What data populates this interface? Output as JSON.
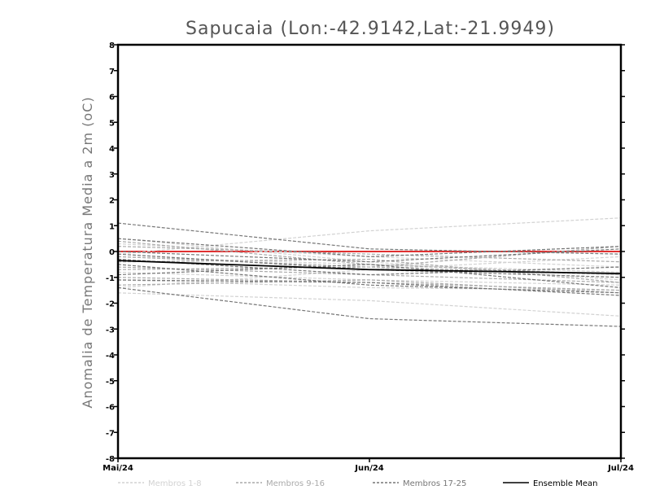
{
  "chart_data": {
    "type": "line",
    "title": "Sapucaia (Lon:-42.9142,Lat:-21.9949)",
    "ylabel": "Anomalia de Temperatura Media a 2m (oC)",
    "xlabel": "",
    "categories": [
      "Mai/24",
      "Jun/24",
      "Jul/24"
    ],
    "ylim": [
      -8,
      8
    ],
    "yticks": [
      "8",
      "7",
      "6",
      "5",
      "4",
      "3",
      "2",
      "1",
      "0",
      "-1",
      "-2",
      "-3",
      "-4",
      "-5",
      "-6",
      "-7",
      "-8"
    ],
    "zero_line_color": "#e03030",
    "legend_position": "bottom",
    "legend": [
      {
        "label": "Membros 1-8",
        "color": "#d2d2d2",
        "dash": true
      },
      {
        "label": "Membros 9-16",
        "color": "#aaaaaa",
        "dash": true
      },
      {
        "label": "Membros 17-25",
        "color": "#777777",
        "dash": true
      },
      {
        "label": "Ensemble Mean",
        "color": "#000000",
        "dash": false
      }
    ],
    "series": [
      {
        "group": 1,
        "values": [
          -1.6,
          -1.9,
          -2.5
        ]
      },
      {
        "group": 1,
        "values": [
          -0.1,
          0.8,
          1.3
        ]
      },
      {
        "group": 1,
        "values": [
          -0.8,
          -1.1,
          -1.3
        ]
      },
      {
        "group": 1,
        "values": [
          0.3,
          -0.2,
          -0.6
        ]
      },
      {
        "group": 1,
        "values": [
          -1.1,
          -1.4,
          -1.5
        ]
      },
      {
        "group": 1,
        "values": [
          -0.2,
          -0.5,
          -0.8
        ]
      },
      {
        "group": 1,
        "values": [
          -1.4,
          -0.7,
          -0.2
        ]
      },
      {
        "group": 1,
        "values": [
          0.5,
          -0.4,
          -1.1
        ]
      },
      {
        "group": 2,
        "values": [
          -1.3,
          -1.1,
          -1.6
        ]
      },
      {
        "group": 2,
        "values": [
          0.4,
          -0.5,
          -0.9
        ]
      },
      {
        "group": 2,
        "values": [
          -0.6,
          -0.9,
          -1.2
        ]
      },
      {
        "group": 2,
        "values": [
          -0.2,
          -0.6,
          0.2
        ]
      },
      {
        "group": 2,
        "values": [
          0.2,
          -0.1,
          -0.4
        ]
      },
      {
        "group": 2,
        "values": [
          -1.0,
          -1.2,
          -1.5
        ]
      },
      {
        "group": 2,
        "values": [
          -0.7,
          -0.6,
          -0.9
        ]
      },
      {
        "group": 2,
        "values": [
          -0.4,
          -0.3,
          -1.2
        ]
      },
      {
        "group": 3,
        "values": [
          1.1,
          0.1,
          -0.1
        ]
      },
      {
        "group": 3,
        "values": [
          -1.4,
          -2.6,
          -2.9
        ]
      },
      {
        "group": 3,
        "values": [
          0.5,
          -0.2,
          0.2
        ]
      },
      {
        "group": 3,
        "values": [
          -0.9,
          -0.5,
          -1.4
        ]
      },
      {
        "group": 3,
        "values": [
          -0.1,
          -0.7,
          -1.0
        ]
      },
      {
        "group": 3,
        "values": [
          -1.1,
          -1.2,
          -1.7
        ]
      },
      {
        "group": 3,
        "values": [
          -0.3,
          -0.9,
          -0.6
        ]
      },
      {
        "group": 3,
        "values": [
          -0.5,
          -1.3,
          -1.6
        ]
      },
      {
        "group": 3,
        "values": [
          0.0,
          -0.4,
          0.1
        ]
      }
    ],
    "ensemble_mean": {
      "name": "Ensemble Mean",
      "values": [
        -0.35,
        -0.7,
        -0.85
      ]
    }
  }
}
